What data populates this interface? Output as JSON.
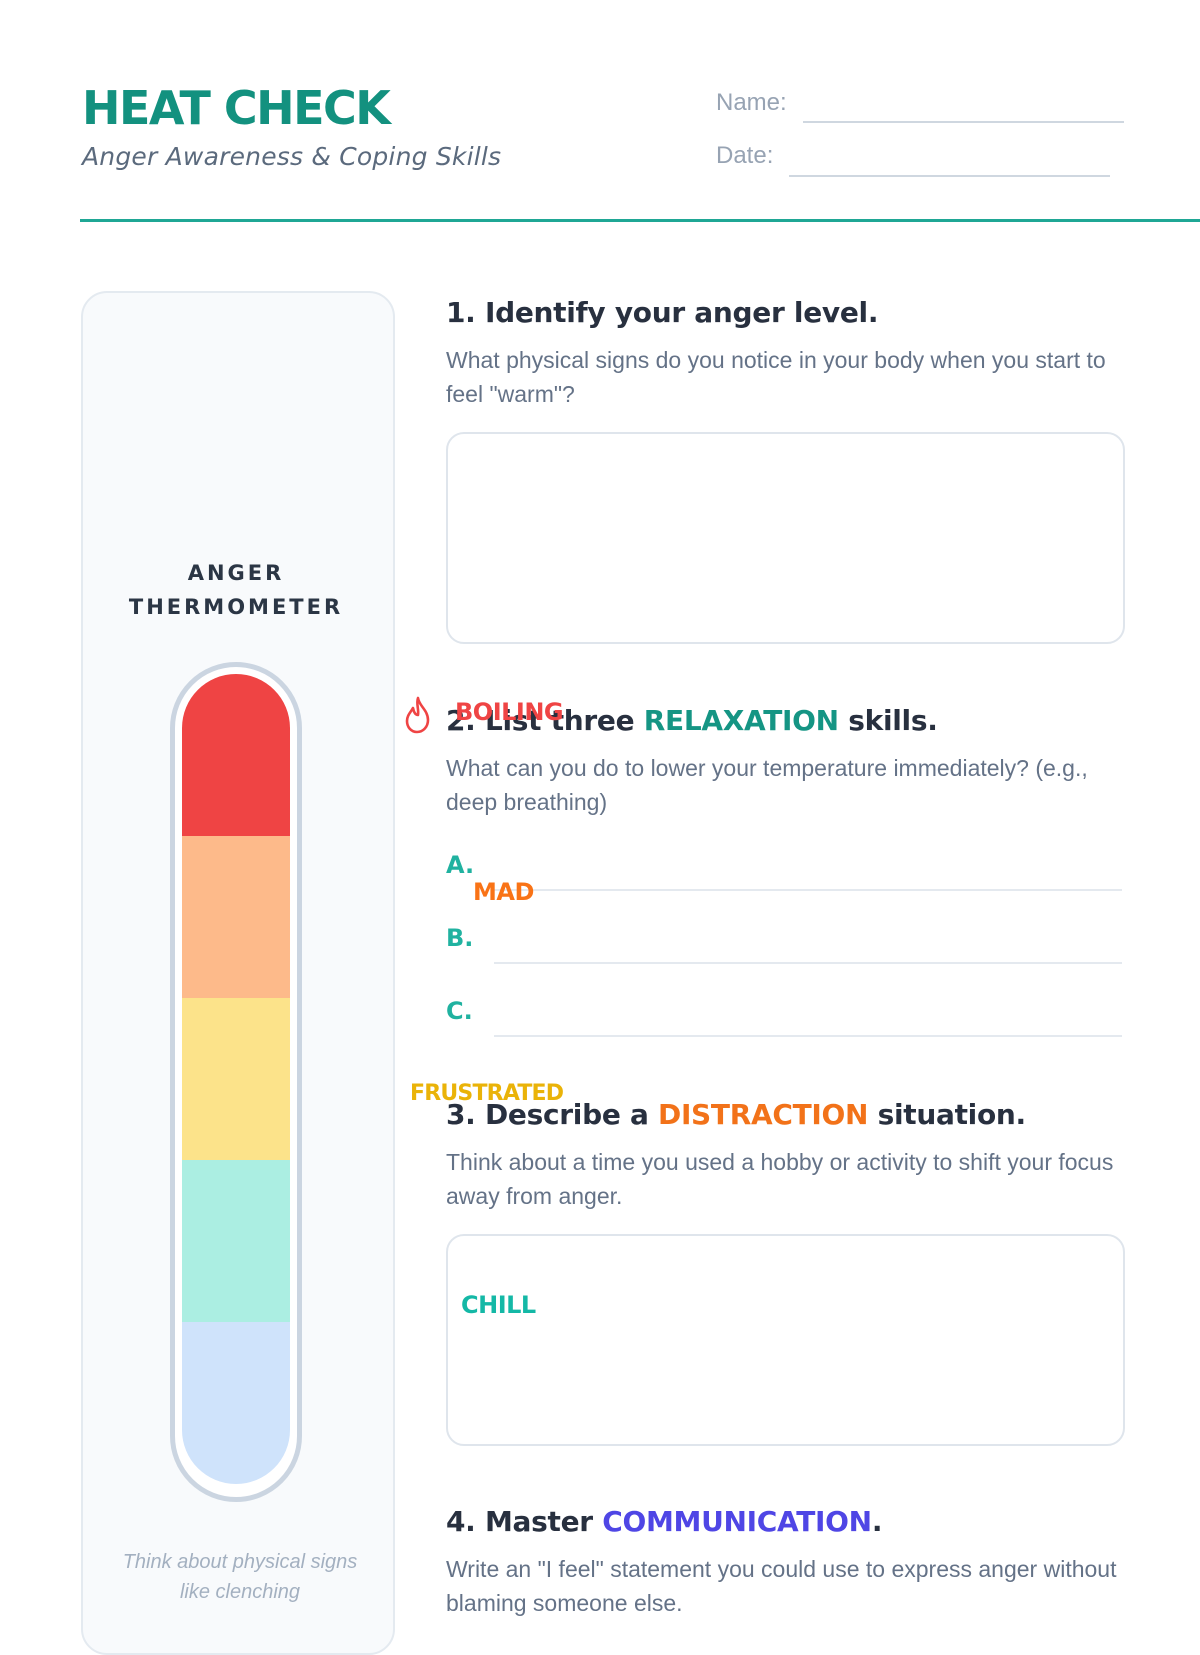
{
  "header": {
    "title": "HEAT CHECK",
    "subtitle": "Anger Awareness & Coping Skills",
    "name_label": "Name:",
    "date_label": "Date:"
  },
  "colors": {
    "accent": "#1fa795",
    "boiling": "#ef4444",
    "mad": "#f97316",
    "frustrated": "#eab308",
    "chill": "#14b8a6",
    "communication": "#4f46e5"
  },
  "thermometer": {
    "label_line1": "ANGER",
    "label_line2": "THERMOMETER",
    "zones": {
      "boiling": "BOILING",
      "mad": "MAD",
      "frustrated": "FRUSTRATED",
      "chill": "CHILL"
    },
    "boiling_icon": "flame-icon",
    "hint": "Think about physical signs like clenching"
  },
  "q1": {
    "title": "1. Identify your anger level.",
    "desc": "What physical signs do you notice in your body when you start to feel \"warm\"?"
  },
  "q2": {
    "prefix": "2. List three ",
    "highlight": "RELAXATION",
    "suffix": " skills.",
    "desc": "What can you do to lower your temperature immediately? (e.g., deep breathing)",
    "items": [
      "A.",
      "B.",
      "C."
    ]
  },
  "q3": {
    "prefix": "3. Describe a ",
    "highlight": "DISTRACTION",
    "suffix": " situation.",
    "desc": "Think about a time you used a hobby or activity to shift your focus away from anger."
  },
  "q4": {
    "prefix": "4. Master ",
    "highlight": "COMMUNICATION",
    "suffix": ".",
    "desc": "Write an \"I feel\" statement you could use to express anger without blaming someone else."
  }
}
